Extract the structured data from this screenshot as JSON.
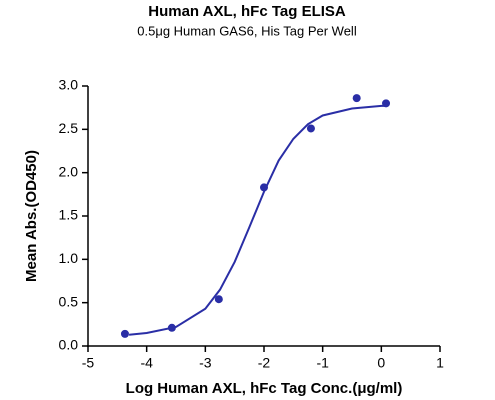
{
  "chart_data": {
    "type": "scatter",
    "title": "Human AXL, hFc Tag ELISA",
    "subtitle": "0.5μg Human GAS6, His Tag Per Well",
    "x_label": "Log Human AXL, hFc Tag Conc.(μg/ml)",
    "y_label": "Mean Abs.(OD450)",
    "x": [
      -4.37,
      -3.57,
      -2.77,
      -2.0,
      -1.2,
      -0.42,
      0.08
    ],
    "values": [
      0.14,
      0.21,
      0.54,
      1.83,
      2.51,
      2.86,
      2.8
    ],
    "color": "#2a2ea6",
    "curve": {
      "x": [
        -4.3,
        -4,
        -3.5,
        -3,
        -2.75,
        -2.5,
        -2.25,
        -2,
        -1.75,
        -1.5,
        -1.25,
        -1,
        -0.5,
        0,
        0.1
      ],
      "values": [
        0.13,
        0.15,
        0.22,
        0.43,
        0.65,
        0.97,
        1.37,
        1.78,
        2.14,
        2.39,
        2.56,
        2.66,
        2.74,
        2.77,
        2.77
      ]
    },
    "xlim": [
      -5,
      1
    ],
    "xticks": [
      -5,
      -4,
      -3,
      -2,
      -1,
      0,
      1
    ],
    "ylim": [
      0,
      3
    ],
    "yticks": [
      {
        "value": 0,
        "label": "0.0"
      },
      0.5,
      {
        "value": 1,
        "label": "1.0"
      },
      1.5,
      {
        "value": 2,
        "label": "2.0"
      },
      2.5,
      {
        "value": 3,
        "label": "3.0"
      }
    ]
  }
}
